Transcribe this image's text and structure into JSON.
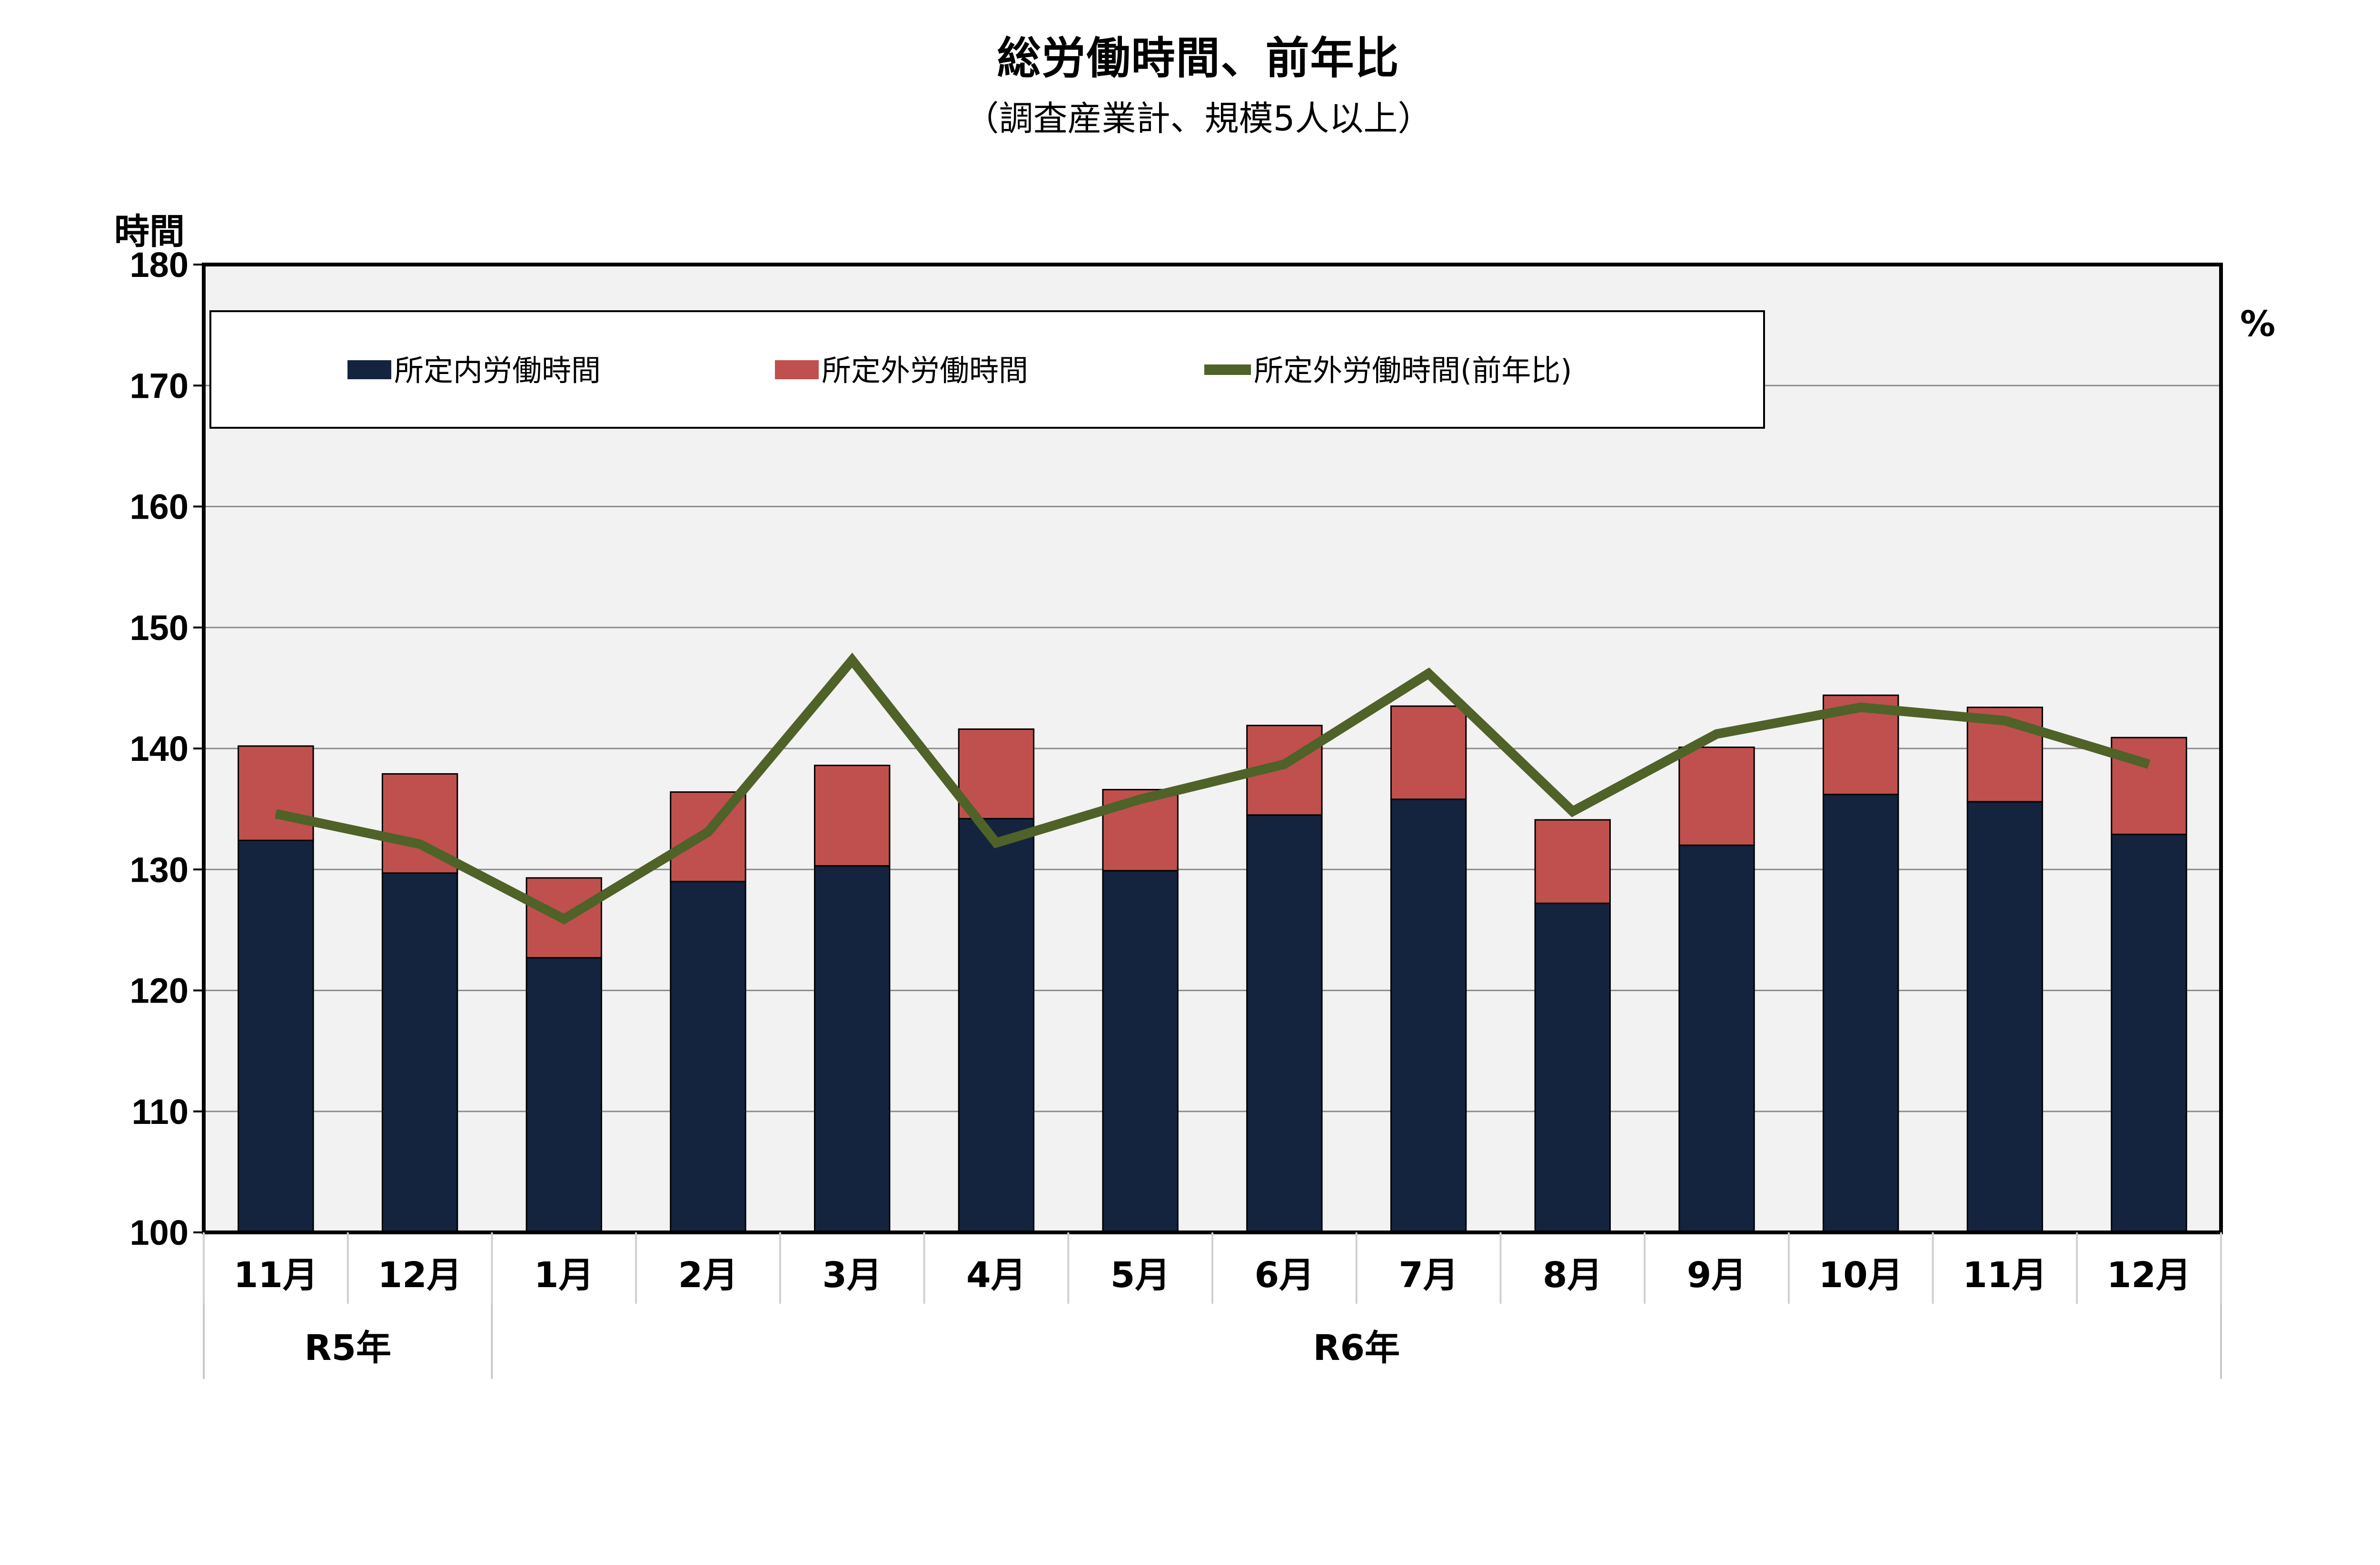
{
  "chart_data": {
    "type": "bar",
    "title": "総労働時間、前年比",
    "subtitle": "（調査産業計、規模5人以上）",
    "ylabel_left": "時間",
    "ylabel_right": "%",
    "ylim": [
      100,
      180
    ],
    "yticks": [
      "100",
      "110",
      "120",
      "130",
      "140",
      "150",
      "160",
      "170",
      "180"
    ],
    "categories": [
      "11月",
      "12月",
      "1月",
      "2月",
      "3月",
      "4月",
      "5月",
      "6月",
      "7月",
      "8月",
      "9月",
      "10月",
      "11月",
      "12月"
    ],
    "year_groups": [
      {
        "label": "R5年",
        "span": 2
      },
      {
        "label": "R6年",
        "span": 12
      }
    ],
    "grid": true,
    "legend_position": "top-left",
    "series": [
      {
        "name": "所定内労働時間",
        "kind": "stacked-bar",
        "color": "#14243f",
        "values": [
          132.4,
          129.7,
          122.7,
          129.0,
          130.3,
          134.2,
          129.9,
          134.5,
          135.8,
          127.2,
          132.0,
          136.2,
          135.6,
          132.9
        ]
      },
      {
        "name": "所定外労働時間",
        "kind": "stacked-bar",
        "color": "#c0504d",
        "values": [
          7.8,
          8.2,
          6.6,
          7.4,
          8.3,
          7.4,
          6.7,
          7.4,
          7.7,
          6.9,
          8.1,
          8.2,
          7.8,
          8.0
        ]
      },
      {
        "name": "所定外労働時間(前年比)",
        "kind": "line",
        "color": "#4f6228",
        "values": [
          134.6,
          132.1,
          125.9,
          133.1,
          147.3,
          132.2,
          135.8,
          138.7,
          146.2,
          134.8,
          141.2,
          143.4,
          142.3,
          138.7
        ]
      }
    ]
  }
}
